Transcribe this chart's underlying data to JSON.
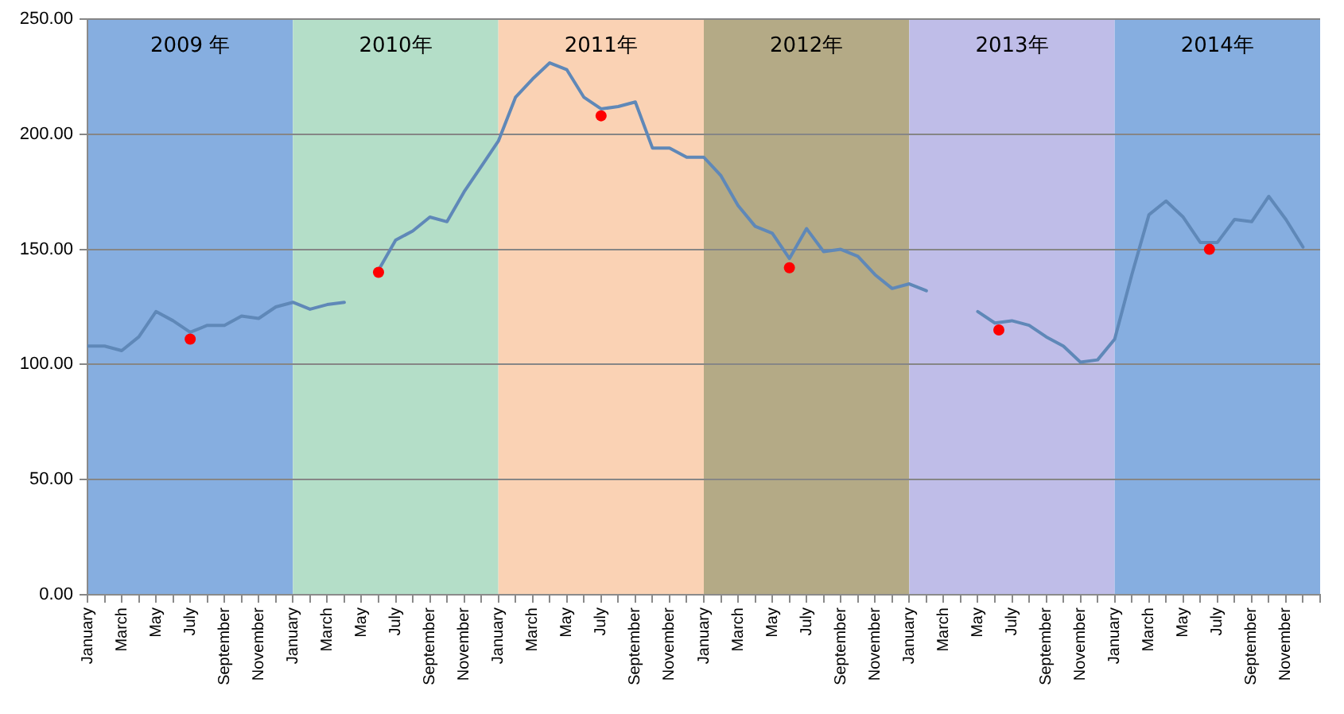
{
  "chart_data": {
    "type": "line",
    "x": [
      "2009-01",
      "2009-02",
      "2009-03",
      "2009-04",
      "2009-05",
      "2009-06",
      "2009-07",
      "2009-08",
      "2009-09",
      "2009-10",
      "2009-11",
      "2009-12",
      "2010-01",
      "2010-02",
      "2010-03",
      "2010-04",
      "2010-05",
      "2010-06",
      "2010-07",
      "2010-08",
      "2010-09",
      "2010-10",
      "2010-11",
      "2010-12",
      "2011-01",
      "2011-02",
      "2011-03",
      "2011-04",
      "2011-05",
      "2011-06",
      "2011-07",
      "2011-08",
      "2011-09",
      "2011-10",
      "2011-11",
      "2011-12",
      "2012-01",
      "2012-02",
      "2012-03",
      "2012-04",
      "2012-05",
      "2012-06",
      "2012-07",
      "2012-08",
      "2012-09",
      "2012-10",
      "2012-11",
      "2012-12",
      "2013-01",
      "2013-02",
      "2013-03",
      "2013-04",
      "2013-05",
      "2013-06",
      "2013-07",
      "2013-08",
      "2013-09",
      "2013-10",
      "2013-11",
      "2013-12",
      "2014-01",
      "2014-02",
      "2014-03",
      "2014-04",
      "2014-05",
      "2014-06",
      "2014-07",
      "2014-08",
      "2014-09",
      "2014-10",
      "2014-11",
      "2014-12"
    ],
    "series": [
      {
        "color": "#5f88b8",
        "values": [
          108,
          108,
          106,
          112,
          123,
          119,
          114,
          117,
          117,
          121,
          120,
          125,
          127,
          124,
          126,
          127,
          null,
          141,
          154,
          158,
          164,
          162,
          175,
          186,
          197,
          216,
          224,
          231,
          228,
          216,
          211,
          212,
          214,
          194,
          194,
          190,
          190,
          182,
          169,
          160,
          157,
          146,
          159,
          149,
          150,
          147,
          139,
          133,
          135,
          132,
          null,
          null,
          123,
          118,
          119,
          117,
          112,
          108,
          101,
          102,
          111,
          139,
          165,
          171,
          164,
          153,
          153,
          163,
          162,
          173,
          163,
          151
        ]
      },
      {
        "type": "scatter",
        "marker": "circle",
        "color": "#ff0000",
        "x": [
          "2009-07",
          "2010-06",
          "2011-07",
          "2012-06",
          "2013-06-08",
          "2014-06-17"
        ],
        "values": [
          111,
          140,
          208,
          142,
          115,
          150
        ]
      }
    ],
    "xlim": [
      "2009-01",
      "2015-01"
    ],
    "xticks": [
      {
        "value": "2009-01",
        "label": "January"
      },
      {
        "value": "2009-02",
        "label": null
      },
      {
        "value": "2009-03",
        "label": "March"
      },
      {
        "value": "2009-04",
        "label": null
      },
      {
        "value": "2009-05",
        "label": "May"
      },
      {
        "value": "2009-06",
        "label": null
      },
      {
        "value": "2009-07",
        "label": "July"
      },
      {
        "value": "2009-08",
        "label": null
      },
      {
        "value": "2009-09",
        "label": "September"
      },
      {
        "value": "2009-10",
        "label": null
      },
      {
        "value": "2009-11",
        "label": "November"
      },
      {
        "value": "2009-12",
        "label": null
      },
      {
        "value": "2010-01",
        "label": "January"
      },
      {
        "value": "2010-02",
        "label": null
      },
      {
        "value": "2010-03",
        "label": "March"
      },
      {
        "value": "2010-04",
        "label": null
      },
      {
        "value": "2010-05",
        "label": "May"
      },
      {
        "value": "2010-06",
        "label": null
      },
      {
        "value": "2010-07",
        "label": "July"
      },
      {
        "value": "2010-08",
        "label": null
      },
      {
        "value": "2010-09",
        "label": "September"
      },
      {
        "value": "2010-10",
        "label": null
      },
      {
        "value": "2010-11",
        "label": "November"
      },
      {
        "value": "2010-12",
        "label": null
      },
      {
        "value": "2011-01",
        "label": "January"
      },
      {
        "value": "2011-02",
        "label": null
      },
      {
        "value": "2011-03",
        "label": "March"
      },
      {
        "value": "2011-04",
        "label": null
      },
      {
        "value": "2011-05",
        "label": "May"
      },
      {
        "value": "2011-06",
        "label": null
      },
      {
        "value": "2011-07",
        "label": "July"
      },
      {
        "value": "2011-08",
        "label": null
      },
      {
        "value": "2011-09",
        "label": "September"
      },
      {
        "value": "2011-10",
        "label": null
      },
      {
        "value": "2011-11",
        "label": "November"
      },
      {
        "value": "2011-12",
        "label": null
      },
      {
        "value": "2012-01",
        "label": "January"
      },
      {
        "value": "2012-02",
        "label": null
      },
      {
        "value": "2012-03",
        "label": "March"
      },
      {
        "value": "2012-04",
        "label": null
      },
      {
        "value": "2012-05",
        "label": "May"
      },
      {
        "value": "2012-06",
        "label": null
      },
      {
        "value": "2012-07",
        "label": "July"
      },
      {
        "value": "2012-08",
        "label": null
      },
      {
        "value": "2012-09",
        "label": "September"
      },
      {
        "value": "2012-10",
        "label": null
      },
      {
        "value": "2012-11",
        "label": "November"
      },
      {
        "value": "2012-12",
        "label": null
      },
      {
        "value": "2013-01",
        "label": "January"
      },
      {
        "value": "2013-02",
        "label": null
      },
      {
        "value": "2013-03",
        "label": "March"
      },
      {
        "value": "2013-04",
        "label": null
      },
      {
        "value": "2013-05",
        "label": "May"
      },
      {
        "value": "2013-06",
        "label": null
      },
      {
        "value": "2013-07",
        "label": "July"
      },
      {
        "value": "2013-08",
        "label": null
      },
      {
        "value": "2013-09",
        "label": "September"
      },
      {
        "value": "2013-10",
        "label": null
      },
      {
        "value": "2013-11",
        "label": "November"
      },
      {
        "value": "2013-12",
        "label": null
      },
      {
        "value": "2014-01",
        "label": "January"
      },
      {
        "value": "2014-02",
        "label": null
      },
      {
        "value": "2014-03",
        "label": "March"
      },
      {
        "value": "2014-04",
        "label": null
      },
      {
        "value": "2014-05",
        "label": "May"
      },
      {
        "value": "2014-06",
        "label": null
      },
      {
        "value": "2014-07",
        "label": "July"
      },
      {
        "value": "2014-08",
        "label": null
      },
      {
        "value": "2014-09",
        "label": "September"
      },
      {
        "value": "2014-10",
        "label": null
      },
      {
        "value": "2014-11",
        "label": "November"
      },
      {
        "value": "2014-12",
        "label": null
      },
      {
        "value": "2015-01",
        "label": null
      }
    ],
    "ylim": [
      0,
      250
    ],
    "yticks": [
      {
        "value": 0,
        "label": "0.00"
      },
      {
        "value": 50,
        "label": "50.00"
      },
      {
        "value": 100,
        "label": "100.00"
      },
      {
        "value": 150,
        "label": "150.00"
      },
      {
        "value": 200,
        "label": "200.00"
      },
      {
        "value": 250,
        "label": "250.00"
      }
    ],
    "bands": [
      {
        "axis": "x",
        "from": "2009-01",
        "to": "2010-01",
        "label": "2009 年",
        "color": "#86aee0"
      },
      {
        "axis": "x",
        "from": "2010-01",
        "to": "2011-01",
        "label": "2010年",
        "color": "#b4dec8"
      },
      {
        "axis": "x",
        "from": "2011-01",
        "to": "2012-01",
        "label": "2011年",
        "color": "#fad2b4"
      },
      {
        "axis": "x",
        "from": "2012-01",
        "to": "2013-01",
        "label": "2012年",
        "color": "#b4aa86"
      },
      {
        "axis": "x",
        "from": "2013-01",
        "to": "2014-01",
        "label": "2013年",
        "color": "#bfbde8"
      },
      {
        "axis": "x",
        "from": "2014-01",
        "to": "2015-01",
        "label": "2014年",
        "color": "#86aee0"
      }
    ],
    "grid": "y",
    "marker": "none",
    "line_style": "solid"
  }
}
